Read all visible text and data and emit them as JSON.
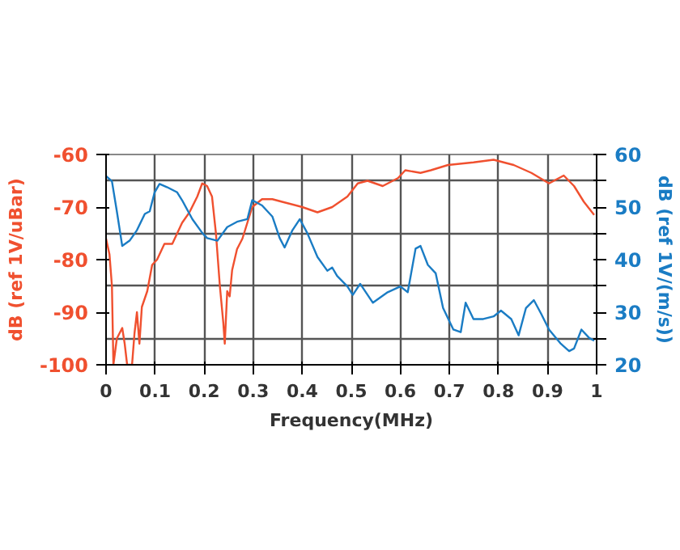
{
  "chart_data": {
    "type": "line",
    "xlabel": "Frequency(MHz)",
    "ylabel": "dB (ref 1V/uBar)",
    "y2label": "dB (ref 1V/(m/s))",
    "xlim": [
      0,
      1
    ],
    "xticks": [
      0,
      0.1,
      0.2,
      0.3,
      0.4,
      0.5,
      0.6,
      0.7,
      0.8,
      0.9,
      1
    ],
    "ylim": [
      -100,
      -60
    ],
    "yticks": [
      -100,
      -90,
      -80,
      -70,
      -60
    ],
    "y2lim": [
      20,
      60
    ],
    "y2ticks": [
      20,
      {
        "value": 25,
        "label": null
      },
      30,
      {
        "value": 35,
        "label": null
      },
      40,
      {
        "value": 45,
        "label": null
      },
      50,
      {
        "value": 55,
        "label": null
      },
      60
    ],
    "grid": true,
    "marker": "none",
    "line_style": "solid",
    "series": [
      {
        "color": "#f0502f",
        "x": [
          0,
          0.007,
          0.012,
          0.015,
          0.022,
          0.033,
          0.038,
          0.043,
          0.053,
          0.058,
          0.063,
          0.068,
          0.073,
          0.084,
          0.094,
          0.104,
          0.119,
          0.135,
          0.145,
          0.155,
          0.17,
          0.186,
          0.196,
          0.206,
          0.216,
          0.224,
          0.232,
          0.239,
          0.242,
          0.247,
          0.252,
          0.257,
          0.267,
          0.278,
          0.288,
          0.298,
          0.318,
          0.339,
          0.359,
          0.4,
          0.431,
          0.461,
          0.492,
          0.513,
          0.533,
          0.564,
          0.595,
          0.61,
          0.641,
          0.662,
          0.697,
          0.749,
          0.79,
          0.831,
          0.867,
          0.903,
          0.933,
          0.954,
          0.974,
          0.995
        ],
        "values": [
          -76,
          -79,
          -85,
          -100,
          -95,
          -93,
          -96,
          -100,
          -100,
          -94,
          -90,
          -96,
          -89,
          -86,
          -81,
          -80,
          -77,
          -77,
          -75,
          -73,
          -71,
          -68,
          -65.5,
          -66,
          -68,
          -75,
          -85,
          -92,
          -96,
          -86,
          -87,
          -82,
          -78,
          -76,
          -73,
          -70,
          -68.5,
          -68.5,
          -69,
          -70,
          -71,
          -70,
          -68,
          -65.5,
          -65,
          -66,
          -64.5,
          -63,
          -63.5,
          -63,
          -62,
          -61.5,
          -61,
          -62,
          -63.5,
          -65.5,
          -64,
          -66,
          -69,
          -71.5
        ]
      },
      {
        "color": "#1a7cc4",
        "axis": "y2",
        "x": [
          0,
          0.012,
          0.022,
          0.033,
          0.048,
          0.063,
          0.079,
          0.089,
          0.099,
          0.109,
          0.124,
          0.145,
          0.155,
          0.176,
          0.196,
          0.206,
          0.227,
          0.247,
          0.267,
          0.288,
          0.298,
          0.318,
          0.339,
          0.354,
          0.364,
          0.38,
          0.395,
          0.41,
          0.431,
          0.451,
          0.461,
          0.471,
          0.492,
          0.503,
          0.518,
          0.544,
          0.574,
          0.6,
          0.615,
          0.631,
          0.641,
          0.656,
          0.672,
          0.687,
          0.708,
          0.723,
          0.733,
          0.749,
          0.769,
          0.79,
          0.805,
          0.826,
          0.841,
          0.856,
          0.872,
          0.887,
          0.903,
          0.926,
          0.944,
          0.954,
          0.969,
          0.985,
          0.995
        ],
        "values": [
          55.9,
          54.9,
          49.2,
          42.6,
          43.6,
          45.6,
          48.7,
          49.2,
          52.8,
          54.4,
          53.8,
          52.8,
          51.3,
          47.7,
          45.1,
          44.1,
          43.6,
          46.2,
          47.2,
          47.7,
          51.3,
          50.3,
          48.2,
          44.1,
          42.3,
          45.6,
          47.7,
          45.1,
          40.5,
          37.9,
          38.5,
          36.9,
          34.9,
          33.3,
          35.4,
          31.8,
          33.8,
          34.9,
          33.8,
          42.1,
          42.6,
          39,
          37.4,
          30.8,
          26.7,
          26.2,
          31.8,
          28.7,
          28.7,
          29.2,
          30.3,
          28.7,
          25.6,
          30.8,
          32.3,
          29.7,
          26.7,
          24.1,
          22.6,
          23.1,
          26.7,
          25.1,
          24.6
        ]
      }
    ]
  }
}
